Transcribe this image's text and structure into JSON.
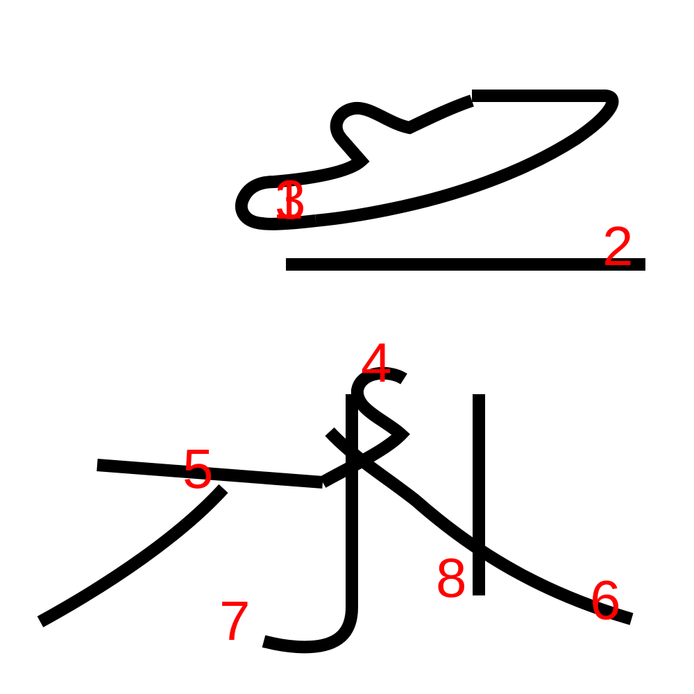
{
  "colors": {
    "stroke": "#000000",
    "label": "#ff0000",
    "background": "#ffffff"
  },
  "stroke_order_labels": [
    "1",
    "2",
    "3",
    "4",
    "5",
    "6",
    "7",
    "8"
  ]
}
